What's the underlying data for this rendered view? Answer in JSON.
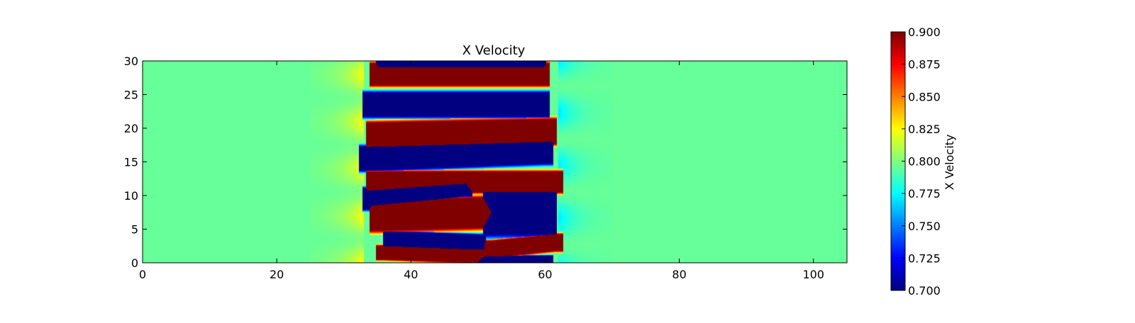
{
  "chart_data": {
    "type": "heatmap",
    "title": "X Velocity",
    "xlabel": "",
    "ylabel": "",
    "xlim": [
      0,
      105
    ],
    "ylim": [
      0,
      30
    ],
    "x_ticks": [
      0,
      20,
      40,
      60,
      80,
      100
    ],
    "y_ticks": [
      0,
      5,
      10,
      15,
      20,
      25,
      30
    ],
    "colormap": "jet",
    "colorbar": {
      "label": "X Velocity",
      "range": [
        0.7,
        0.9
      ],
      "ticks": [
        "0.700",
        "0.725",
        "0.750",
        "0.775",
        "0.800",
        "0.825",
        "0.850",
        "0.875",
        "0.900"
      ]
    },
    "background_value": 0.795,
    "front_region": {
      "x_left": 33,
      "x_right": 62
    },
    "high_bands": [
      {
        "y_left": 28.0,
        "y_right": 28.0,
        "half_width": 1.6,
        "x_start": 35.0,
        "x_end": 59.5,
        "value": 0.9
      },
      {
        "y_left": 19.0,
        "y_right": 19.5,
        "half_width": 1.8,
        "x_start": 34.5,
        "x_end": 60.5,
        "value": 0.9
      },
      {
        "y_left": 12.0,
        "y_right": 12.0,
        "half_width": 1.5,
        "x_start": 34.5,
        "x_end": 61.5,
        "value": 0.9
      },
      {
        "y_left": 7.0,
        "y_right": 7.5,
        "half_width": 2.2,
        "x_start": 35.0,
        "x_end": 53.0,
        "value": 0.9
      },
      {
        "y_left": 1.5,
        "y_right": 1.0,
        "half_width": 1.0,
        "x_start": 36.0,
        "x_end": 50.0,
        "value": 0.9
      },
      {
        "y_left": 2.0,
        "y_right": 3.0,
        "half_width": 1.2,
        "x_start": 52.0,
        "x_end": 61.5,
        "value": 0.9
      }
    ],
    "low_bands": [
      {
        "y_left": 29.5,
        "y_right": 29.5,
        "half_width": 0.8,
        "x_start": 36.0,
        "x_end": 59.0,
        "value": 0.7
      },
      {
        "y_left": 23.5,
        "y_right": 23.5,
        "half_width": 1.7,
        "x_start": 34.0,
        "x_end": 59.5,
        "value": 0.7
      },
      {
        "y_left": 15.5,
        "y_right": 16.5,
        "half_width": 1.7,
        "x_start": 33.5,
        "x_end": 60.0,
        "value": 0.7
      },
      {
        "y_left": 9.5,
        "y_right": 11.5,
        "half_width": 1.5,
        "x_start": 34.0,
        "x_end": 48.0,
        "value": 0.7
      },
      {
        "y_left": 3.5,
        "y_right": 3.0,
        "half_width": 1.1,
        "x_start": 37.0,
        "x_end": 50.0,
        "value": 0.7
      },
      {
        "y_left": 7.5,
        "y_right": 7.5,
        "half_width": 3.2,
        "x_start": 52.0,
        "x_end": 60.5,
        "value": 0.7
      },
      {
        "y_left": 0.3,
        "y_right": 0.3,
        "half_width": 0.7,
        "x_start": 51.0,
        "x_end": 60.0,
        "value": 0.7
      }
    ]
  }
}
